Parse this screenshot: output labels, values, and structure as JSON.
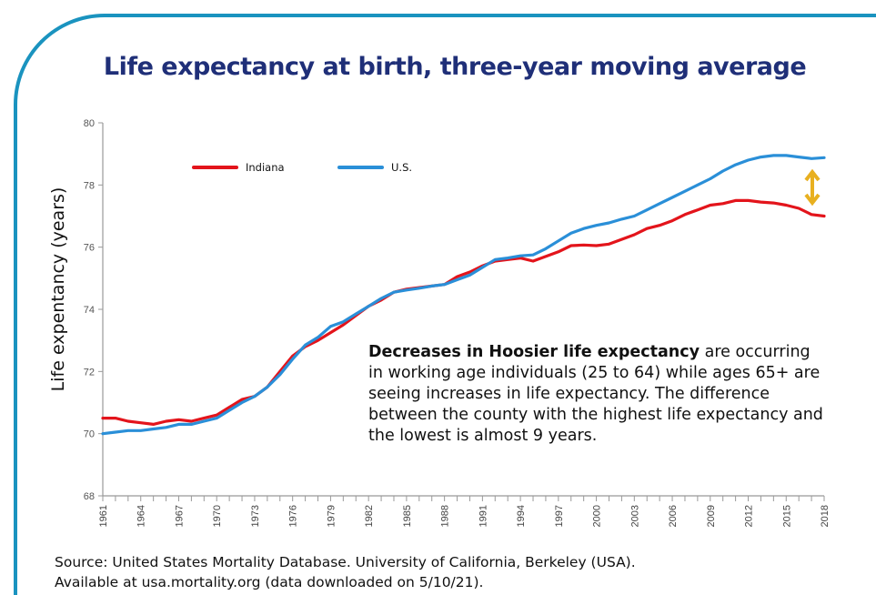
{
  "colors": {
    "frame": "#1a93bf",
    "title": "#1f2f78",
    "indiana": "#e3141b",
    "us": "#2a8fd8",
    "gap_arrow": "#e8b020"
  },
  "chart_data": {
    "type": "line",
    "title": "Life expectancy at birth, three-year moving average",
    "xlabel": "",
    "ylabel": "Life expentancy (years)",
    "xlim": [
      1961,
      2018
    ],
    "ylim": [
      68,
      80
    ],
    "yticks": [
      68,
      70,
      72,
      74,
      76,
      78,
      80
    ],
    "xticks": [
      1961,
      1964,
      1967,
      1970,
      1973,
      1976,
      1979,
      1982,
      1985,
      1988,
      1991,
      1994,
      1997,
      2000,
      2003,
      2006,
      2009,
      2012,
      2015,
      2018
    ],
    "legend_position": "top-left",
    "grid": false,
    "x": [
      1961,
      1962,
      1963,
      1964,
      1965,
      1966,
      1967,
      1968,
      1969,
      1970,
      1971,
      1972,
      1973,
      1974,
      1975,
      1976,
      1977,
      1978,
      1979,
      1980,
      1981,
      1982,
      1983,
      1984,
      1985,
      1986,
      1987,
      1988,
      1989,
      1990,
      1991,
      1992,
      1993,
      1994,
      1995,
      1996,
      1997,
      1998,
      1999,
      2000,
      2001,
      2002,
      2003,
      2004,
      2005,
      2006,
      2007,
      2008,
      2009,
      2010,
      2011,
      2012,
      2013,
      2014,
      2015,
      2016,
      2017,
      2018
    ],
    "series": [
      {
        "name": "Indiana",
        "color": "#e3141b",
        "values": [
          70.5,
          70.5,
          70.4,
          70.35,
          70.3,
          70.4,
          70.45,
          70.4,
          70.5,
          70.6,
          70.85,
          71.1,
          71.2,
          71.5,
          72.0,
          72.5,
          72.8,
          73.0,
          73.25,
          73.5,
          73.8,
          74.1,
          74.3,
          74.55,
          74.65,
          74.7,
          74.75,
          74.8,
          75.05,
          75.2,
          75.4,
          75.55,
          75.6,
          75.65,
          75.55,
          75.7,
          75.85,
          76.05,
          76.07,
          76.05,
          76.1,
          76.25,
          76.4,
          76.6,
          76.7,
          76.85,
          77.05,
          77.2,
          77.35,
          77.4,
          77.5,
          77.5,
          77.45,
          77.42,
          77.35,
          77.25,
          77.05,
          77.0
        ]
      },
      {
        "name": "U.S.",
        "color": "#2a8fd8",
        "values": [
          70.0,
          70.05,
          70.1,
          70.1,
          70.15,
          70.2,
          70.3,
          70.3,
          70.4,
          70.5,
          70.75,
          71.0,
          71.2,
          71.5,
          71.9,
          72.4,
          72.85,
          73.1,
          73.45,
          73.6,
          73.85,
          74.1,
          74.35,
          74.55,
          74.62,
          74.68,
          74.75,
          74.8,
          74.95,
          75.1,
          75.35,
          75.6,
          75.65,
          75.72,
          75.75,
          75.95,
          76.2,
          76.45,
          76.6,
          76.7,
          76.78,
          76.9,
          77.0,
          77.2,
          77.4,
          77.6,
          77.8,
          78.0,
          78.2,
          78.45,
          78.65,
          78.8,
          78.9,
          78.95,
          78.95,
          78.9,
          78.85,
          78.88
        ]
      }
    ]
  },
  "annotation": {
    "bold": "Decreases in Hoosier life expectancy",
    "rest": " are occurring in working age individuals (25 to 64) while ages 65+ are seeing increases in life expectancy. The difference between the county with the highest life expectancy and the lowest is almost 9 years."
  },
  "source": {
    "line1": "Source: United States Mortality Database. University of California, Berkeley (USA).",
    "line2": "Available at usa.mortality.org (data downloaded on 5/10/21)."
  }
}
